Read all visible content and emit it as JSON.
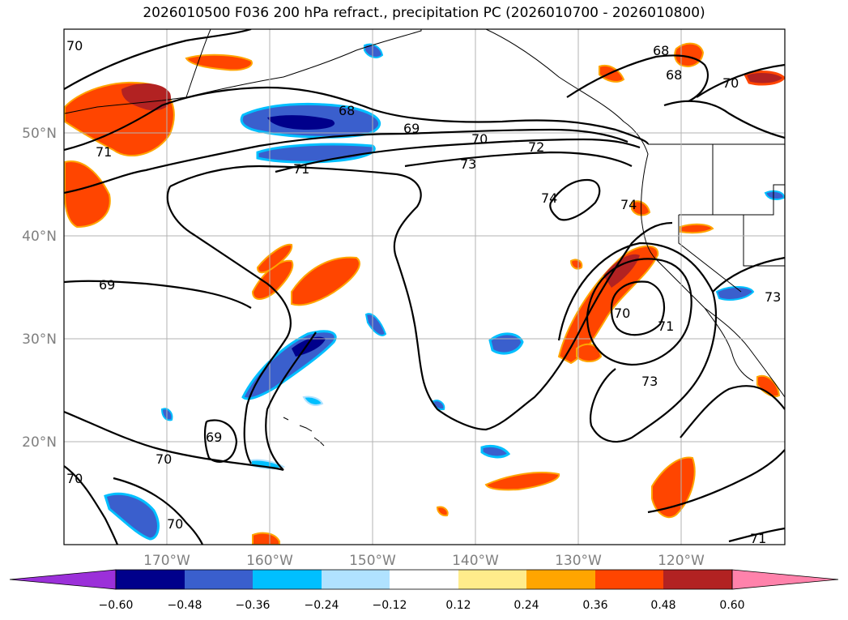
{
  "title": "2026010500 F036 200 hPa refract., precipitation PC (2026010700 - 2026010800)",
  "map": {
    "lon_labels": [
      "170°W",
      "160°W",
      "150°W",
      "140°W",
      "130°W",
      "120°W"
    ],
    "lat_labels": [
      "50°N",
      "40°N",
      "30°N",
      "20°N"
    ],
    "contour_labels": [
      "70",
      "68",
      "69",
      "70",
      "72",
      "73",
      "71",
      "71",
      "74",
      "74",
      "69",
      "70",
      "71",
      "73",
      "69",
      "70",
      "70",
      "70",
      "71",
      "68",
      "68",
      "70",
      "73"
    ]
  },
  "colorbar": {
    "ticks": [
      "−0.60",
      "−0.48",
      "−0.36",
      "−0.24",
      "−0.12",
      "0.12",
      "0.24",
      "0.36",
      "0.48",
      "0.60"
    ],
    "colors": [
      "#9b30d9",
      "#00008b",
      "#3a5fcd",
      "#00bfff",
      "#b0e2ff",
      "#ffffff",
      "#ffec8b",
      "#ffa500",
      "#ff4500",
      "#b22222",
      "#ff82ab"
    ]
  },
  "colors": {
    "neg_strong": "#00008b",
    "neg_mid": "#3a5fcd",
    "neg_light": "#00bfff",
    "neg_pale": "#b0e2ff",
    "pos_pale": "#ffec8b",
    "pos_light": "#ffa500",
    "pos_mid": "#ff4500",
    "pos_strong": "#b22222"
  }
}
